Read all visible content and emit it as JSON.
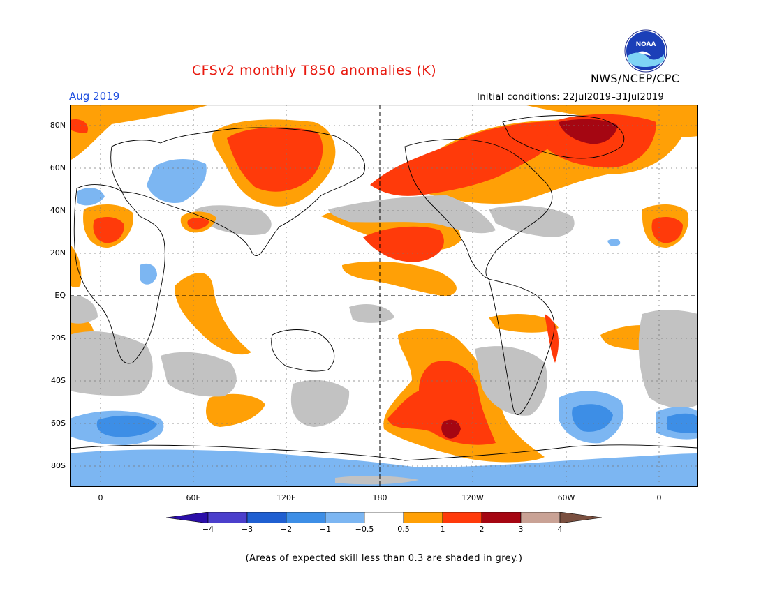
{
  "header": {
    "title": "CFSv2 monthly T850 anomalies (K)",
    "agency": "NWS/NCEP/CPC",
    "logo_text": "NOAA",
    "month": "Aug 2019",
    "initial_conditions": "Initial conditions: 22Jul2019–31Jul2019"
  },
  "map": {
    "y_labels": [
      "80N",
      "60N",
      "40N",
      "20N",
      "EQ",
      "20S",
      "40S",
      "60S",
      "80S"
    ],
    "x_labels": [
      "0",
      "60E",
      "120E",
      "180",
      "120W",
      "60W",
      "0"
    ]
  },
  "colorbar": {
    "labels": [
      "−4",
      "−3",
      "−2",
      "−1",
      "−0.5",
      "0.5",
      "1",
      "2",
      "3",
      "4"
    ],
    "colors": [
      "#2b0ea8",
      "#4b3fcc",
      "#1f5fd1",
      "#3d8ee6",
      "#7cb6f2",
      "#ffffff",
      "#ffa006",
      "#ff3a0a",
      "#a50612",
      "#c9a295",
      "#7a4f3f"
    ]
  },
  "colors": {
    "grey_skill": "#c2c2c2",
    "title": "#e8190f",
    "blue_text": "#1f4fe0"
  },
  "footnote": "(Areas of expected skill less than 0.3 are shaded in grey.)"
}
